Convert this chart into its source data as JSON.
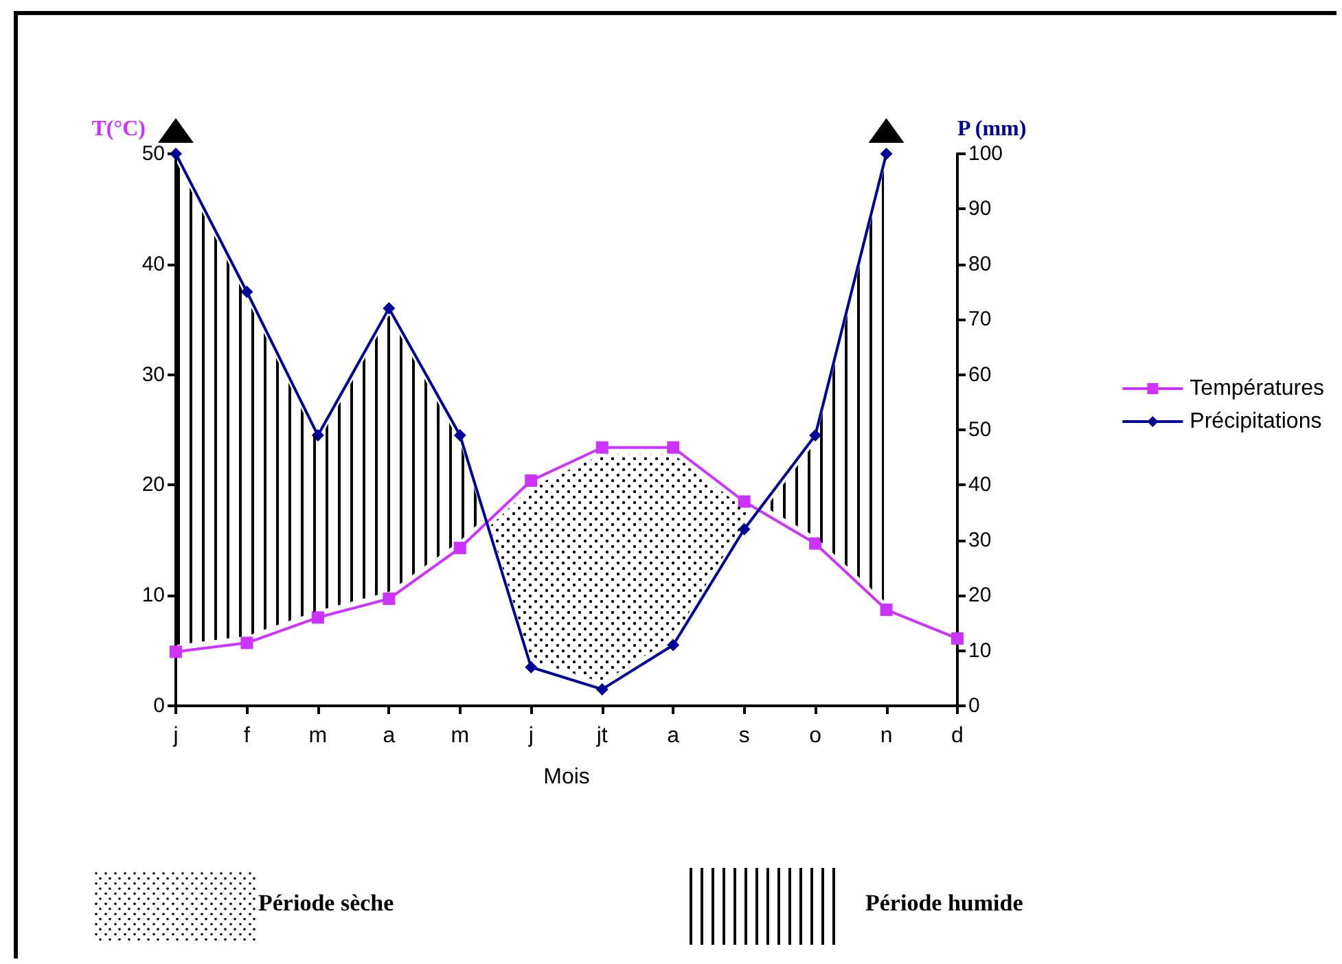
{
  "chart_data": {
    "type": "line",
    "xlabel": "Mois",
    "ylabel": "T(°C)",
    "y2label": "P (mm)",
    "categories": [
      "j",
      "f",
      "m",
      "a",
      "m",
      "j",
      "jt",
      "a",
      "s",
      "o",
      "n",
      "d"
    ],
    "series": [
      {
        "name": "Températures",
        "color": "#cc33ff",
        "marker": "square",
        "values": [
          4.9,
          5.7,
          8.0,
          9.7,
          14.3,
          20.4,
          23.4,
          23.4,
          18.5,
          14.7,
          8.7,
          6.1
        ]
      },
      {
        "name": "Précipitations",
        "color": "#000099",
        "marker": "diamond",
        "axis": "y2",
        "values": [
          100,
          75,
          49,
          72,
          49,
          7,
          3,
          11,
          32,
          49,
          100,
          null
        ]
      }
    ],
    "ylim": [
      0,
      50
    ],
    "yticks": [
      0,
      10,
      20,
      30,
      40,
      50
    ],
    "y2lim": [
      0,
      100
    ],
    "y2ticks": [
      0,
      10,
      20,
      30,
      40,
      50,
      60,
      70,
      80,
      90,
      100
    ],
    "grid": false,
    "legend": "right",
    "annotations": [
      "Période sèche",
      "Période humide"
    ]
  }
}
